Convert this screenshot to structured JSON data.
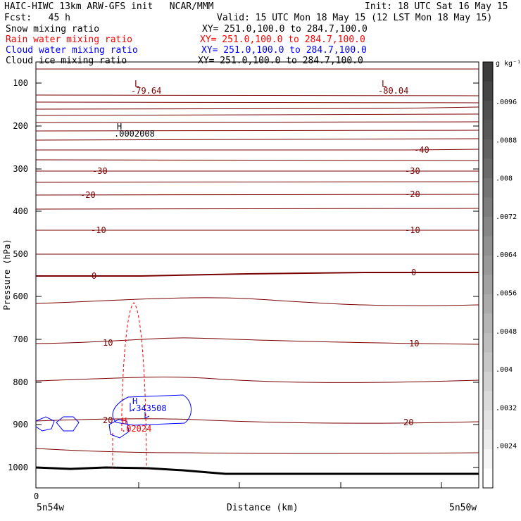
{
  "header": {
    "title": "HAIC-HIWC 13km ARW-GFS init   NCAR/MMM",
    "init": "Init: 18 UTC Sat 16 May 15",
    "fcst": "Fcst:   45 h",
    "valid": "Valid: 15 UTC Mon 18 May 15 (12 LST Mon 18 May 15)"
  },
  "fields": [
    {
      "name": "Snow mixing ratio",
      "xy": "XY= 251.0,100.0 to 284.7,100.0",
      "color": "#000000"
    },
    {
      "name": "Rain water mixing ratio",
      "xy": "XY= 251.0,100.0 to 284.7,100.0",
      "color": "#ff0000"
    },
    {
      "name": "Cloud water mixing ratio",
      "xy": "XY= 251.0,100.0 to 284.7,100.0",
      "color": "#0000ff"
    },
    {
      "name": "Cloud ice mixing ratio",
      "xy": "XY= 251.0,100.0 to 284.7,100.0",
      "color": "#000000"
    }
  ],
  "chart_data": {
    "type": "contour",
    "ylabel": "Pressure (hPa)",
    "xlabel": "Distance (km)",
    "yticks": [
      "100",
      "200",
      "300",
      "400",
      "500",
      "600",
      "700",
      "800",
      "900",
      "1000"
    ],
    "xticks": [
      "0"
    ],
    "x_endpoints": {
      "left": "5n54w",
      "right": "5n50w"
    },
    "colorbar": {
      "unit": "g kg⁻¹",
      "labels": [
        ".0096",
        ".0088",
        ".008",
        ".0072",
        ".0064",
        ".0056",
        ".0048",
        ".004",
        ".0032",
        ".0024"
      ]
    },
    "temperature_labels": [
      "-30",
      "-20",
      "-10",
      "0",
      "10",
      "20",
      "-40"
    ],
    "annotations": {
      "low_left": {
        "mark": "L",
        "value": "-79.64"
      },
      "low_right": {
        "mark": "L",
        "value": "-80.04"
      },
      "snow_high": {
        "mark": "H",
        "value": ".0002008"
      },
      "cloud_water_high": {
        "mark": "H",
        "value": ".343508"
      },
      "rain_high": {
        "mark": "H",
        "value": ".02024"
      }
    }
  }
}
